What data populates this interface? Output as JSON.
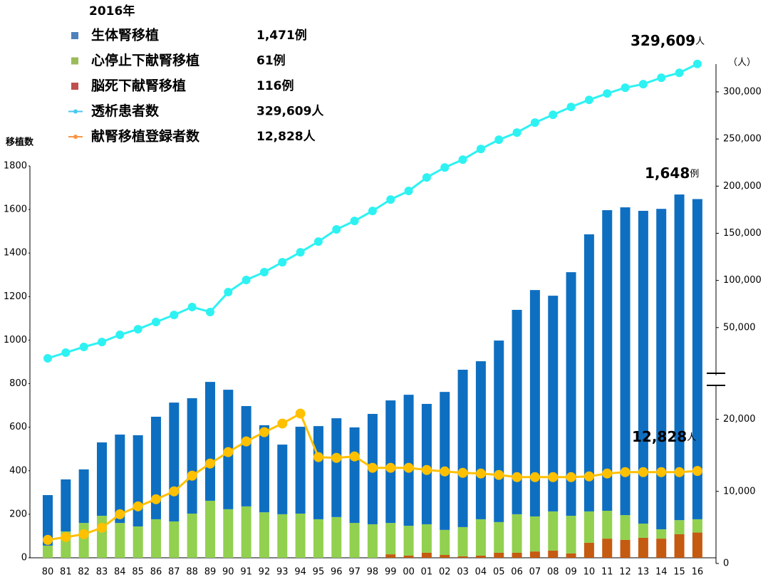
{
  "chart_data": {
    "type": "bar",
    "legend_title": "2016年",
    "ylabel": "移植数",
    "y2label": "（人）",
    "categories": [
      "80",
      "81",
      "82",
      "83",
      "84",
      "85",
      "86",
      "87",
      "88",
      "89",
      "90",
      "91",
      "92",
      "93",
      "94",
      "95",
      "96",
      "97",
      "98",
      "99",
      "00",
      "01",
      "02",
      "03",
      "04",
      "05",
      "06",
      "07",
      "08",
      "09",
      "10",
      "11",
      "12",
      "13",
      "14",
      "15",
      "16"
    ],
    "series": [
      {
        "name": "脳死下献腎移植",
        "type": "bar",
        "color": "#c55a11",
        "legend_color": "#c0504d",
        "legend_value": "116例",
        "values": [
          0,
          0,
          0,
          0,
          0,
          0,
          0,
          0,
          0,
          0,
          0,
          0,
          0,
          0,
          0,
          0,
          0,
          0,
          0,
          16,
          10,
          23,
          13,
          7,
          10,
          23,
          23,
          29,
          33,
          20,
          69,
          88,
          82,
          92,
          88,
          108,
          116
        ]
      },
      {
        "name": "心停止下献腎移植",
        "type": "bar",
        "color": "#92d050",
        "legend_color": "#9bbb59",
        "legend_value": "61例",
        "values": [
          56,
          121,
          160,
          193,
          160,
          144,
          177,
          167,
          203,
          262,
          223,
          236,
          209,
          200,
          203,
          177,
          187,
          160,
          154,
          144,
          137,
          131,
          115,
          134,
          167,
          141,
          177,
          161,
          180,
          173,
          144,
          128,
          114,
          65,
          43,
          65,
          61
        ]
      },
      {
        "name": "生体腎移植",
        "type": "bar",
        "color": "#0e6fc1",
        "legend_color": "#4f81bd",
        "legend_value": "1,471例",
        "values": [
          232,
          239,
          246,
          337,
          406,
          419,
          471,
          546,
          530,
          546,
          549,
          461,
          400,
          320,
          399,
          428,
          454,
          439,
          507,
          563,
          602,
          553,
          634,
          723,
          726,
          834,
          939,
          1040,
          991,
          1119,
          1273,
          1381,
          1414,
          1437,
          1472,
          1496,
          1471
        ]
      },
      {
        "name": "透析患者数",
        "type": "line",
        "axis": "y3",
        "color": "#2ef2f2",
        "legend_color": "#4bc8f0",
        "legend_value": "329,609人",
        "values": [
          17400,
          23400,
          29500,
          34700,
          42300,
          48300,
          55900,
          63400,
          71800,
          66500,
          87600,
          100500,
          108800,
          119300,
          129900,
          141200,
          154100,
          163100,
          173700,
          185800,
          194900,
          209200,
          219800,
          228100,
          239400,
          249200,
          256800,
          267400,
          275700,
          284000,
          291500,
          298300,
          304400,
          308200,
          315000,
          320200,
          329609
        ]
      },
      {
        "name": "献腎移植登録者数",
        "type": "line",
        "axis": "y2",
        "color": "#ffc000",
        "legend_color": "#f79646",
        "legend_value": "12,828人",
        "values": [
          3270,
          3660,
          4060,
          4950,
          6830,
          7920,
          8910,
          10000,
          12180,
          13860,
          15450,
          16930,
          18220,
          19410,
          20790,
          14750,
          14650,
          14850,
          13270,
          13270,
          13270,
          12970,
          12770,
          12570,
          12480,
          12280,
          11980,
          11980,
          11980,
          11980,
          12080,
          12480,
          12670,
          12670,
          12670,
          12670,
          12828
        ]
      }
    ],
    "ylim": [
      0,
      1800
    ],
    "yticks": [
      0,
      200,
      400,
      600,
      800,
      1000,
      1200,
      1400,
      1600,
      1800
    ],
    "y2lim": [
      0,
      25000
    ],
    "y2ticks": [
      0,
      {
        "value": 10000,
        "label": "10,000"
      },
      {
        "value": 20000,
        "label": "20,000"
      }
    ],
    "y3lim": [
      0,
      340000
    ],
    "y3ticks": [
      {
        "value": 50000,
        "label": "50,000"
      },
      {
        "value": 100000,
        "label": "100,000"
      },
      {
        "value": 150000,
        "label": "150,000"
      },
      {
        "value": 200000,
        "label": "200,000"
      },
      {
        "value": 250000,
        "label": "250,000"
      },
      {
        "value": 300000,
        "label": "300,000"
      }
    ],
    "annotations": [
      {
        "text": "329,609",
        "unit": "人"
      },
      {
        "text": "1,648",
        "unit": "例"
      },
      {
        "text": "12,828",
        "unit": "人"
      }
    ]
  }
}
